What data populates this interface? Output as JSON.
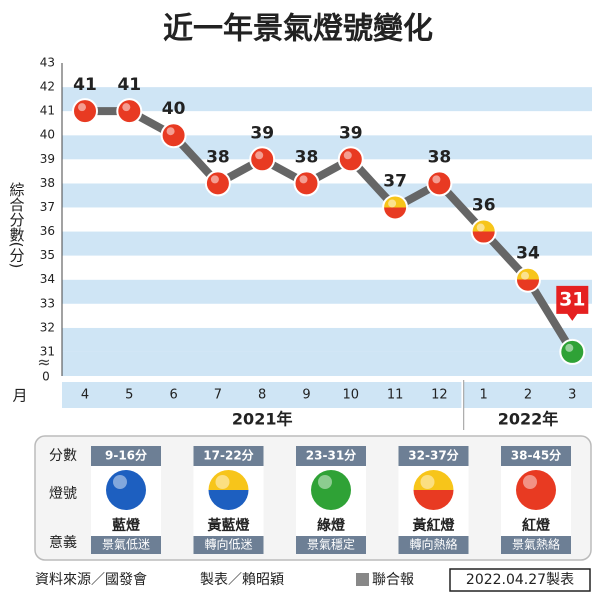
{
  "chart_data": {
    "type": "line",
    "title": "近一年景氣燈號變化",
    "y_label": "綜合分數(分)",
    "x_label": "月",
    "y_origin_label": "0",
    "categories": [
      "4",
      "5",
      "6",
      "7",
      "8",
      "9",
      "10",
      "11",
      "12",
      "1",
      "2",
      "3"
    ],
    "years": [
      {
        "label": "2021年",
        "from": 0,
        "to": 8
      },
      {
        "label": "2022年",
        "from": 9,
        "to": 11
      }
    ],
    "series": [
      {
        "name": "綜合分數",
        "color": "#666666",
        "values": [
          41,
          41,
          40,
          38,
          39,
          38,
          39,
          37,
          38,
          36,
          34,
          31
        ],
        "point_colors": [
          [
            "#e83a22",
            "#e83a22"
          ],
          [
            "#e83a22",
            "#e83a22"
          ],
          [
            "#e83a22",
            "#e83a22"
          ],
          [
            "#e83a22",
            "#e83a22"
          ],
          [
            "#e83a22",
            "#e83a22"
          ],
          [
            "#e83a22",
            "#e83a22"
          ],
          [
            "#e83a22",
            "#e83a22"
          ],
          [
            "#f7c51a",
            "#e83a22"
          ],
          [
            "#e83a22",
            "#e83a22"
          ],
          [
            "#f7c51a",
            "#e83a22"
          ],
          [
            "#f7c51a",
            "#e83a22"
          ],
          [
            "#2fa236",
            "#2fa236"
          ]
        ]
      }
    ],
    "ylim": [
      30,
      43
    ],
    "yticks": [
      31,
      32,
      33,
      34,
      35,
      36,
      37,
      38,
      39,
      40,
      41,
      42,
      43
    ],
    "grid": true,
    "highlight_last": true,
    "legend": {
      "row_labels": [
        "分數",
        "燈號",
        "意義"
      ],
      "items": [
        {
          "range": "9-16分",
          "name": "藍燈",
          "meaning": "景氣低迷",
          "colors": [
            "#1d5fc0",
            "#1d5fc0"
          ]
        },
        {
          "range": "17-22分",
          "name": "黃藍燈",
          "meaning": "轉向低迷",
          "colors": [
            "#f7c51a",
            "#1d5fc0"
          ]
        },
        {
          "range": "23-31分",
          "name": "綠燈",
          "meaning": "景氣穩定",
          "colors": [
            "#2fa236",
            "#2fa236"
          ]
        },
        {
          "range": "32-37分",
          "name": "黃紅燈",
          "meaning": "轉向熱絡",
          "colors": [
            "#f7c51a",
            "#e83a22"
          ]
        },
        {
          "range": "38-45分",
          "name": "紅燈",
          "meaning": "景氣熱絡",
          "colors": [
            "#e83a22",
            "#e83a22"
          ]
        }
      ]
    },
    "footer": {
      "source": "資料來源／國發會",
      "maker": "製表／賴昭穎",
      "paper": "聯合報",
      "date": "2022.04.27製表"
    }
  }
}
